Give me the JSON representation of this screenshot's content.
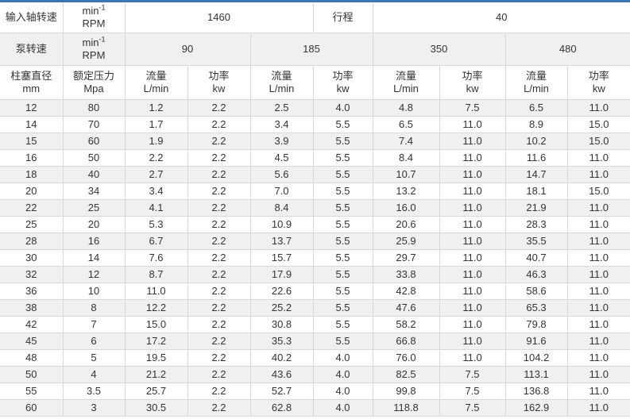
{
  "page": {
    "accent_bar_color": "#3b76b7",
    "colors": {
      "alt_row_bg": "#f0f0f0",
      "row_bg": "#ffffff",
      "border": "#d9d9d9",
      "text": "#333333"
    }
  },
  "table": {
    "row1": {
      "label": "输入轴转速",
      "unit_base": "min",
      "unit_sup": "-1",
      "unit_line2": "RPM",
      "value": "1460",
      "stroke_label": "行程",
      "stroke_value": "40"
    },
    "row2": {
      "label": "泵转速",
      "unit_base": "min",
      "unit_sup": "-1",
      "unit_line2": "RPM",
      "speeds": [
        "90",
        "185",
        "350",
        "480"
      ]
    },
    "header": {
      "col1_line1": "柱塞直径",
      "col1_line2": "mm",
      "col2_line1": "额定压力",
      "col2_line2": "Mpa",
      "flow_line1": "流量",
      "flow_line2": "L/min",
      "power_line1": "功率",
      "power_line2": "kw"
    },
    "body_rows": [
      [
        "12",
        "80",
        "1.2",
        "2.2",
        "2.5",
        "4.0",
        "4.8",
        "7.5",
        "6.5",
        "11.0"
      ],
      [
        "14",
        "70",
        "1.7",
        "2.2",
        "3.4",
        "5.5",
        "6.5",
        "11.0",
        "8.9",
        "15.0"
      ],
      [
        "15",
        "60",
        "1.9",
        "2.2",
        "3.9",
        "5.5",
        "7.4",
        "11.0",
        "10.2",
        "15.0"
      ],
      [
        "16",
        "50",
        "2.2",
        "2.2",
        "4.5",
        "5.5",
        "8.4",
        "11.0",
        "11.6",
        "11.0"
      ],
      [
        "18",
        "40",
        "2.7",
        "2.2",
        "5.6",
        "5.5",
        "10.7",
        "11.0",
        "14.7",
        "11.0"
      ],
      [
        "20",
        "34",
        "3.4",
        "2.2",
        "7.0",
        "5.5",
        "13.2",
        "11.0",
        "18.1",
        "15.0"
      ],
      [
        "22",
        "25",
        "4.1",
        "2.2",
        "8.4",
        "5.5",
        "16.0",
        "11.0",
        "21.9",
        "11.0"
      ],
      [
        "25",
        "20",
        "5.3",
        "2.2",
        "10.9",
        "5.5",
        "20.6",
        "11.0",
        "28.3",
        "11.0"
      ],
      [
        "28",
        "16",
        "6.7",
        "2.2",
        "13.7",
        "5.5",
        "25.9",
        "11.0",
        "35.5",
        "11.0"
      ],
      [
        "30",
        "14",
        "7.6",
        "2.2",
        "15.7",
        "5.5",
        "29.7",
        "11.0",
        "40.7",
        "11.0"
      ],
      [
        "32",
        "12",
        "8.7",
        "2.2",
        "17.9",
        "5.5",
        "33.8",
        "11.0",
        "46.3",
        "11.0"
      ],
      [
        "36",
        "10",
        "11.0",
        "2.2",
        "22.6",
        "5.5",
        "42.8",
        "11.0",
        "58.6",
        "11.0"
      ],
      [
        "38",
        "8",
        "12.2",
        "2.2",
        "25.2",
        "5.5",
        "47.6",
        "11.0",
        "65.3",
        "11.0"
      ],
      [
        "42",
        "7",
        "15.0",
        "2.2",
        "30.8",
        "5.5",
        "58.2",
        "11.0",
        "79.8",
        "11.0"
      ],
      [
        "45",
        "6",
        "17.2",
        "2.2",
        "35.3",
        "5.5",
        "66.8",
        "11.0",
        "91.6",
        "11.0"
      ],
      [
        "48",
        "5",
        "19.5",
        "2.2",
        "40.2",
        "4.0",
        "76.0",
        "11.0",
        "104.2",
        "11.0"
      ],
      [
        "50",
        "4",
        "21.2",
        "2.2",
        "43.6",
        "4.0",
        "82.5",
        "7.5",
        "113.1",
        "11.0"
      ],
      [
        "55",
        "3.5",
        "25.7",
        "2.2",
        "52.7",
        "4.0",
        "99.8",
        "7.5",
        "136.8",
        "11.0"
      ],
      [
        "60",
        "3",
        "30.5",
        "2.2",
        "62.8",
        "4.0",
        "118.8",
        "7.5",
        "162.9",
        "11.0"
      ]
    ]
  }
}
